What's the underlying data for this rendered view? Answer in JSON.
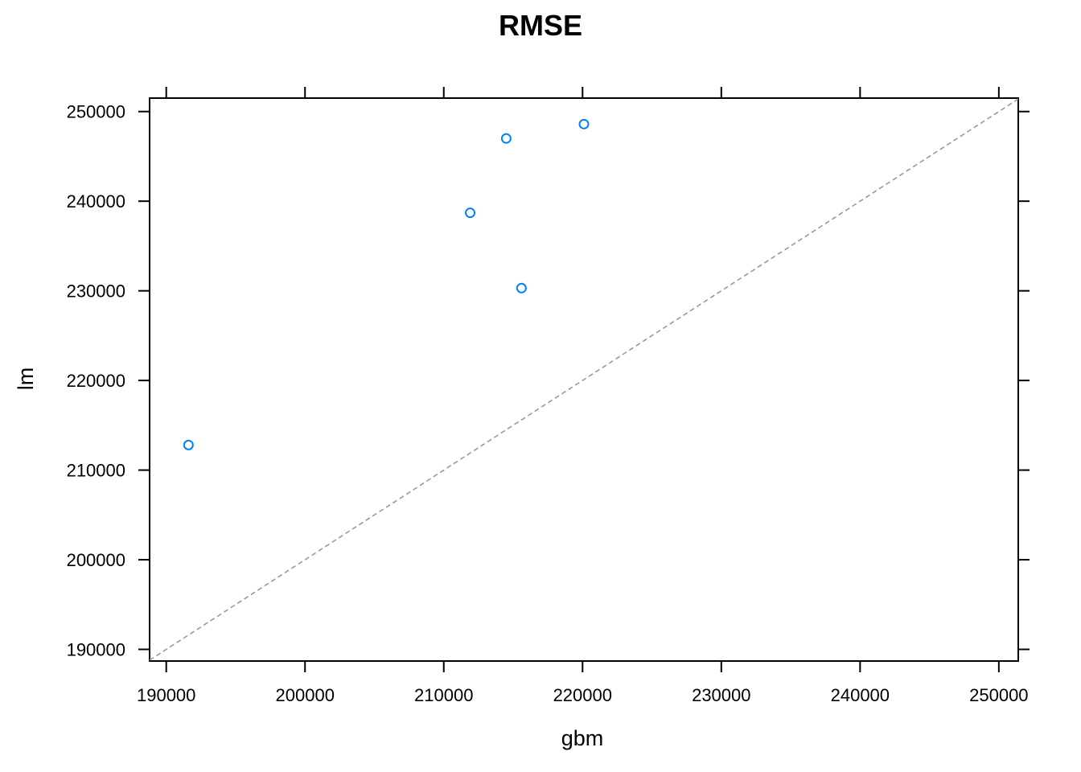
{
  "chart_data": {
    "type": "scatter",
    "title": "RMSE",
    "xlabel": "gbm",
    "ylabel": "lm",
    "xlim": [
      188800,
      251400
    ],
    "ylim": [
      188700,
      251500
    ],
    "xticks": [
      190000,
      200000,
      210000,
      220000,
      230000,
      240000,
      250000
    ],
    "yticks": [
      190000,
      200000,
      210000,
      220000,
      230000,
      240000,
      250000
    ],
    "xtick_labels": [
      "190000",
      "200000",
      "210000",
      "220000",
      "230000",
      "240000",
      "250000"
    ],
    "ytick_labels": [
      "190000",
      "200000",
      "210000",
      "220000",
      "230000",
      "240000",
      "250000"
    ],
    "reference_line": {
      "type": "y=x",
      "style": "dashed",
      "color": "#999999"
    },
    "point_color": "#0080ff",
    "marker": "open-circle",
    "grid": false,
    "points": [
      {
        "x": 191600,
        "y": 212800
      },
      {
        "x": 211900,
        "y": 238700
      },
      {
        "x": 214500,
        "y": 247000
      },
      {
        "x": 215600,
        "y": 230300
      },
      {
        "x": 220100,
        "y": 248600
      }
    ]
  }
}
